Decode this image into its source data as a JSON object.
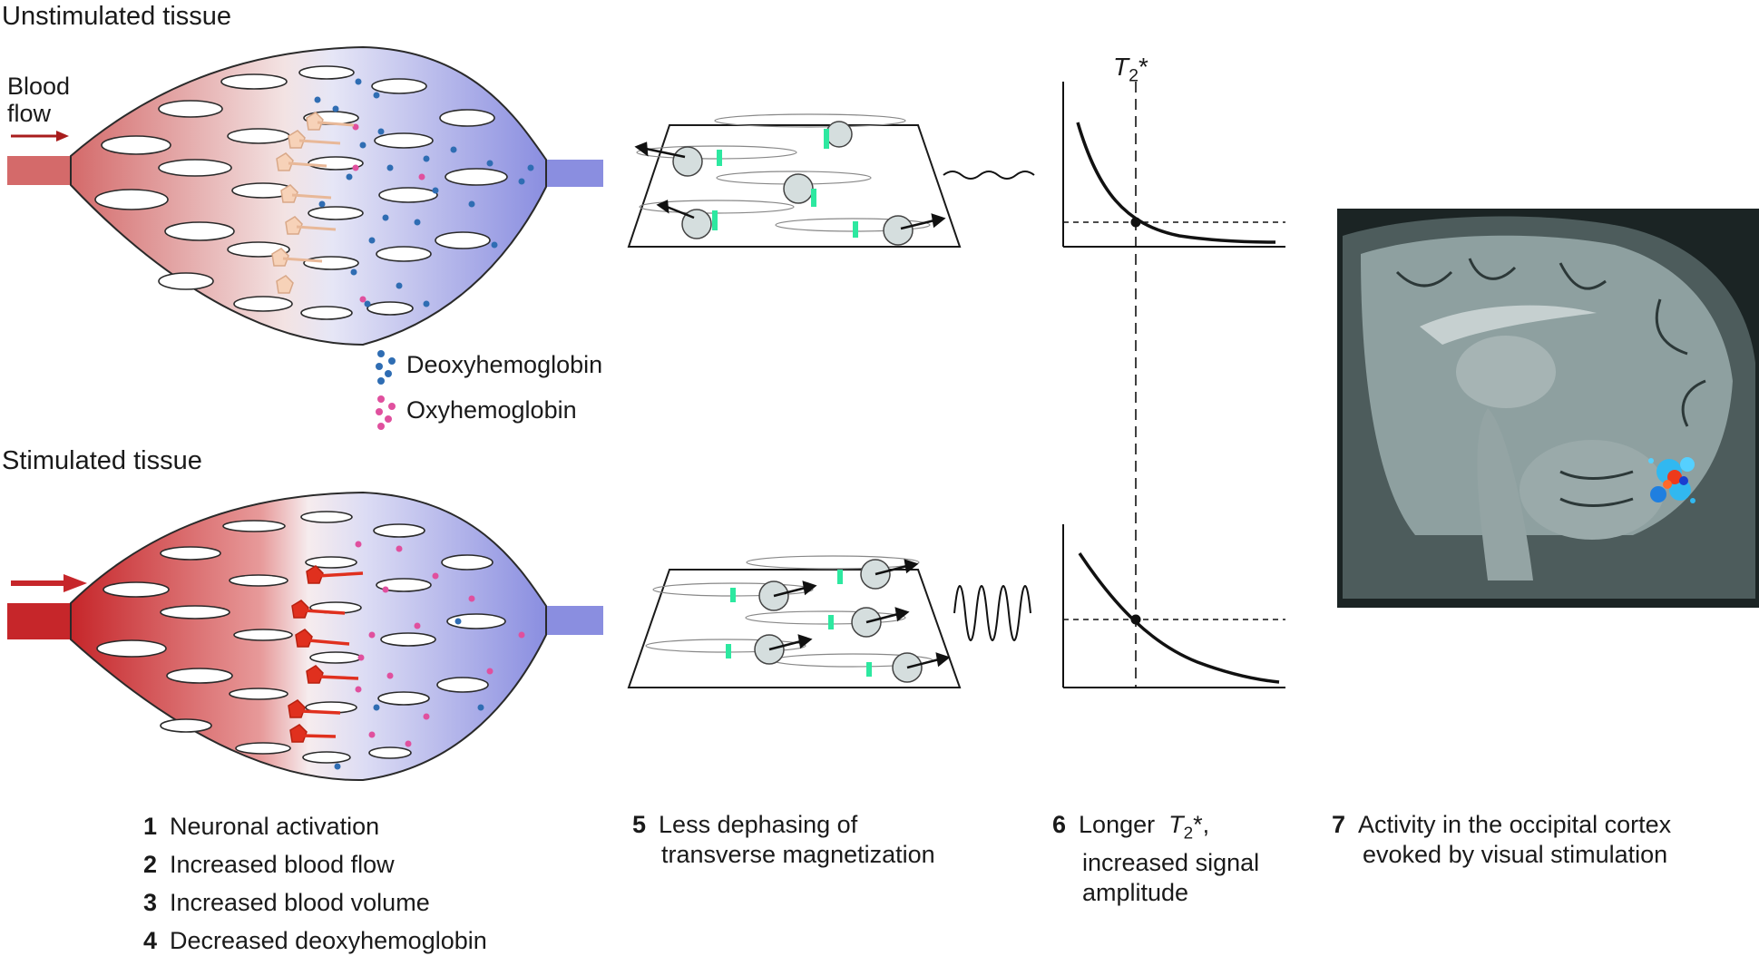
{
  "titles": {
    "unstimulated": "Unstimulated tissue",
    "stimulated": "Stimulated tissue"
  },
  "inflow": {
    "line1": "Blood",
    "line2": "flow"
  },
  "legend": {
    "deoxy": "Deoxyhemoglobin",
    "oxy": "Oxyhemoglobin",
    "deoxy_color": "#2f6db3",
    "oxy_color": "#e0509e"
  },
  "graph": {
    "t2_symbol": "T",
    "t2_sub": "2",
    "t2_star": "*"
  },
  "steps": {
    "s1": {
      "num": "1",
      "text": "Neuronal activation"
    },
    "s2": {
      "num": "2",
      "text": "Increased blood flow"
    },
    "s3": {
      "num": "3",
      "text": "Increased blood volume"
    },
    "s4": {
      "num": "4",
      "text": "Decreased deoxyhemoglobin"
    },
    "s5": {
      "num": "5",
      "line1": "Less dephasing of",
      "line2": "transverse magnetization"
    },
    "s6": {
      "num": "6",
      "line1a": "Longer",
      "line1b": "T",
      "line1sub": "2",
      "line1c": "*,",
      "line2": "increased signal",
      "line3": "amplitude"
    },
    "s7": {
      "num": "7",
      "line1": "Activity in the occipital cortex",
      "line2": "evoked by visual stimulation"
    }
  }
}
